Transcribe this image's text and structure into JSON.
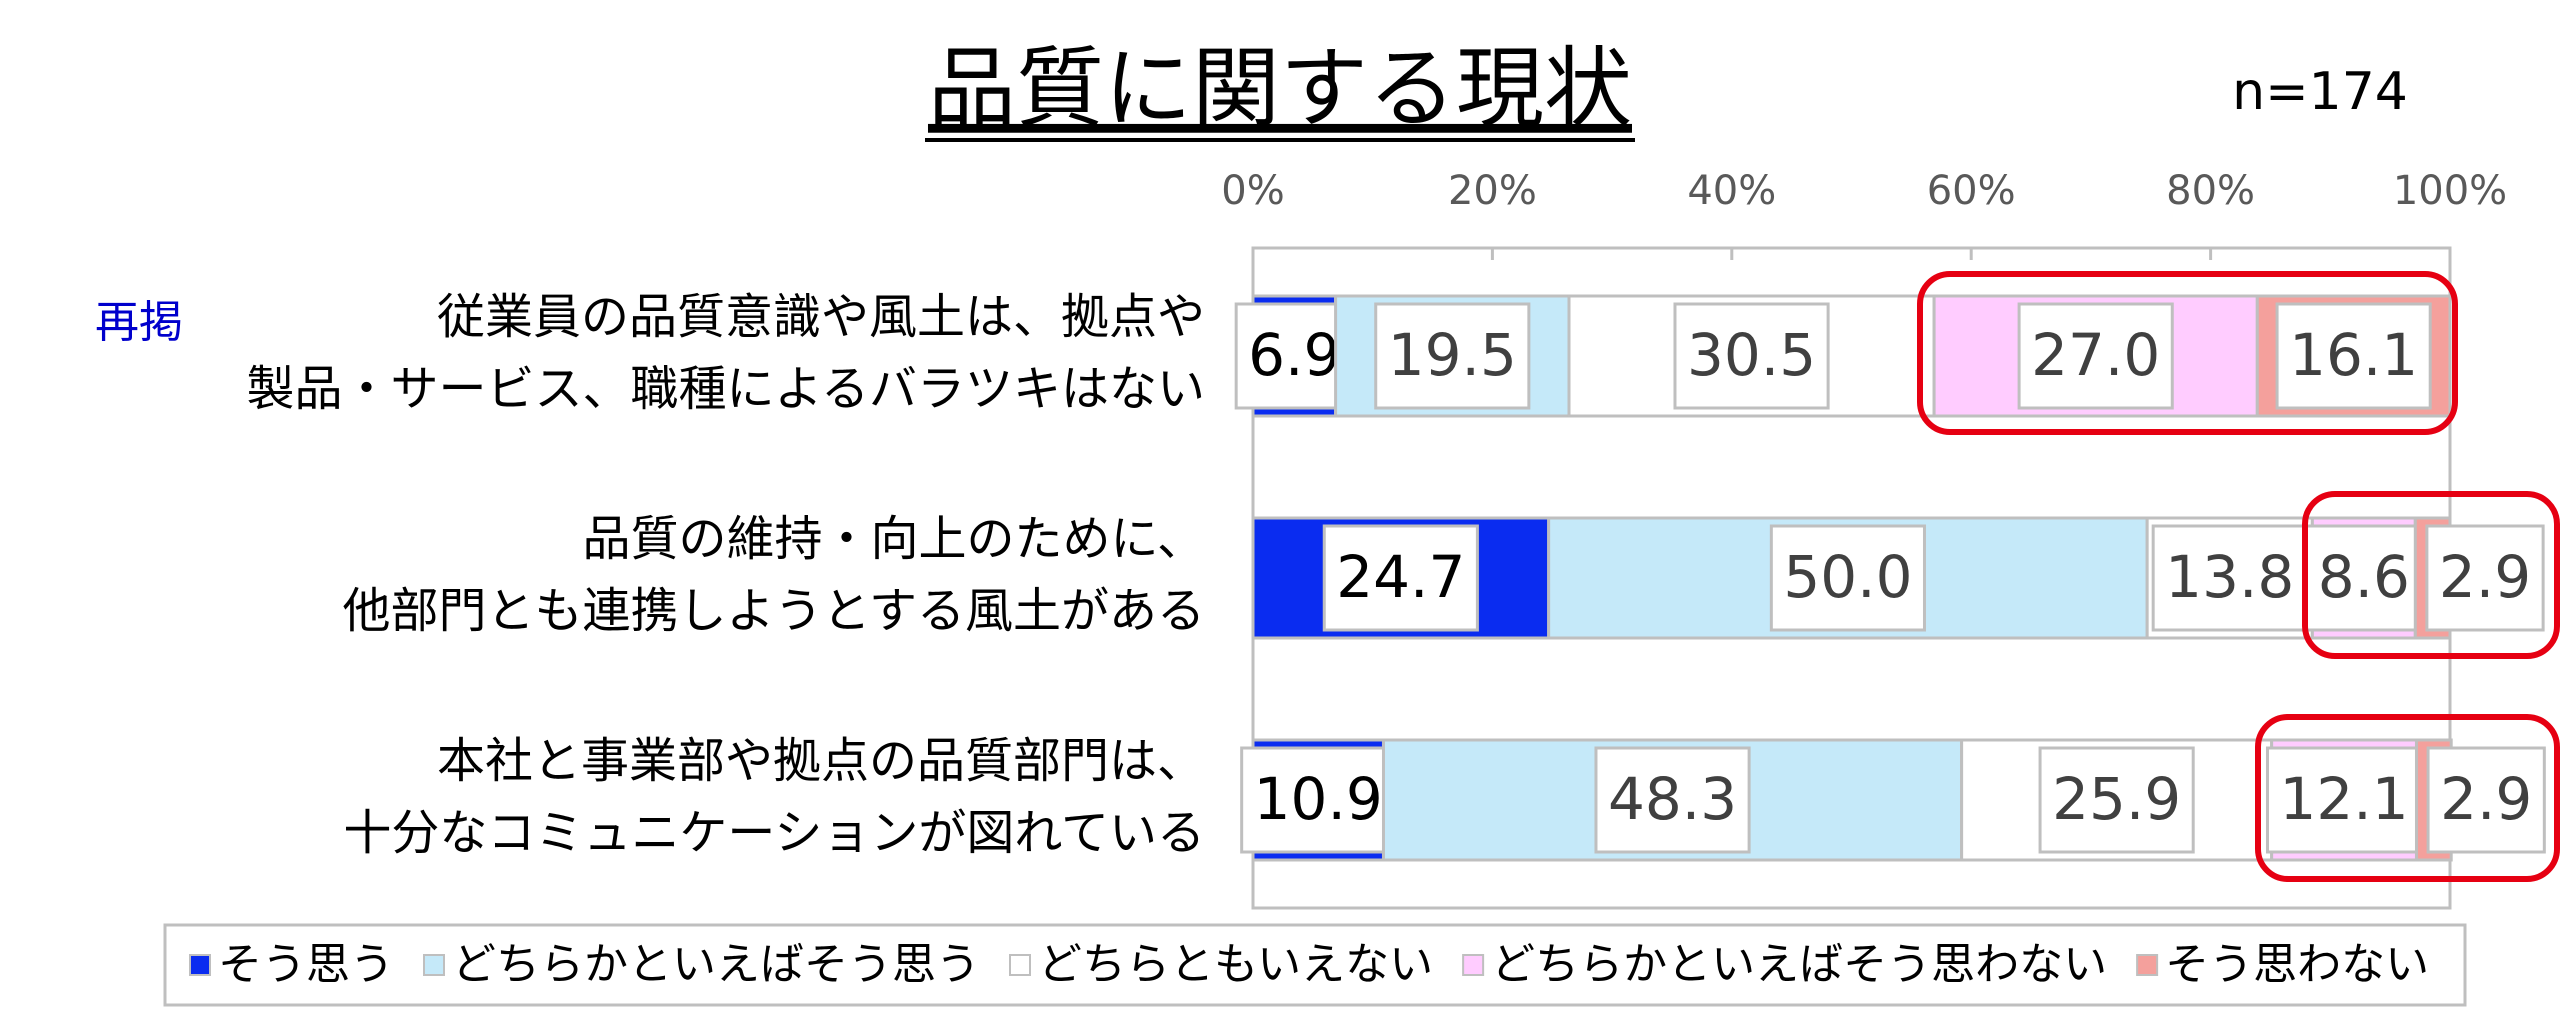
{
  "chart_data": {
    "type": "stacked_bar_horizontal",
    "title": "品質に関する現状",
    "annotations": [
      "n=174",
      "再掲"
    ],
    "categories": [
      [
        "従業員の品質意識や風土は、拠点や",
        "製品・サービス、職種によるバラツキはない"
      ],
      [
        "品質の維持・向上のために、",
        "他部門とも連携しようとする風土がある"
      ],
      [
        "本社と事業部や拠点の品質部門は、",
        "十分なコミュニケーションが図れている"
      ]
    ],
    "series": [
      {
        "name": "そう思う",
        "color": "#0a2cf0",
        "values": [
          6.9,
          24.7,
          10.9
        ],
        "value_labels": [
          "6.9",
          "24.7",
          "10.9"
        ]
      },
      {
        "name": "どちらかといえばそう思う",
        "color": "#c5e9f9",
        "values": [
          19.5,
          50.0,
          48.3
        ],
        "value_labels": [
          "19.5",
          "50.0",
          "48.3"
        ]
      },
      {
        "name": "どちらともいえない",
        "color": "#ffffff",
        "values": [
          30.5,
          13.8,
          25.9
        ],
        "value_labels": [
          "30.5",
          "13.8",
          "25.9"
        ]
      },
      {
        "name": "どちらかといえばそう思わない",
        "color": "#ffccff",
        "values": [
          27.0,
          8.6,
          12.1
        ],
        "value_labels": [
          "27.0",
          "8.6",
          "12.1"
        ]
      },
      {
        "name": "そう思わない",
        "color": "#f4a09c",
        "values": [
          16.1,
          2.9,
          2.9
        ],
        "value_labels": [
          "16.1",
          "2.9",
          "2.9"
        ]
      }
    ],
    "xlim": [
      0,
      100
    ],
    "xticks": [
      {
        "value": 0,
        "label": "0%"
      },
      {
        "value": 20,
        "label": "20%"
      },
      {
        "value": 40,
        "label": "40%"
      },
      {
        "value": 60,
        "label": "60%"
      },
      {
        "value": 80,
        "label": "80%"
      },
      {
        "value": 100,
        "label": "100%"
      }
    ],
    "legend": "bottom"
  }
}
